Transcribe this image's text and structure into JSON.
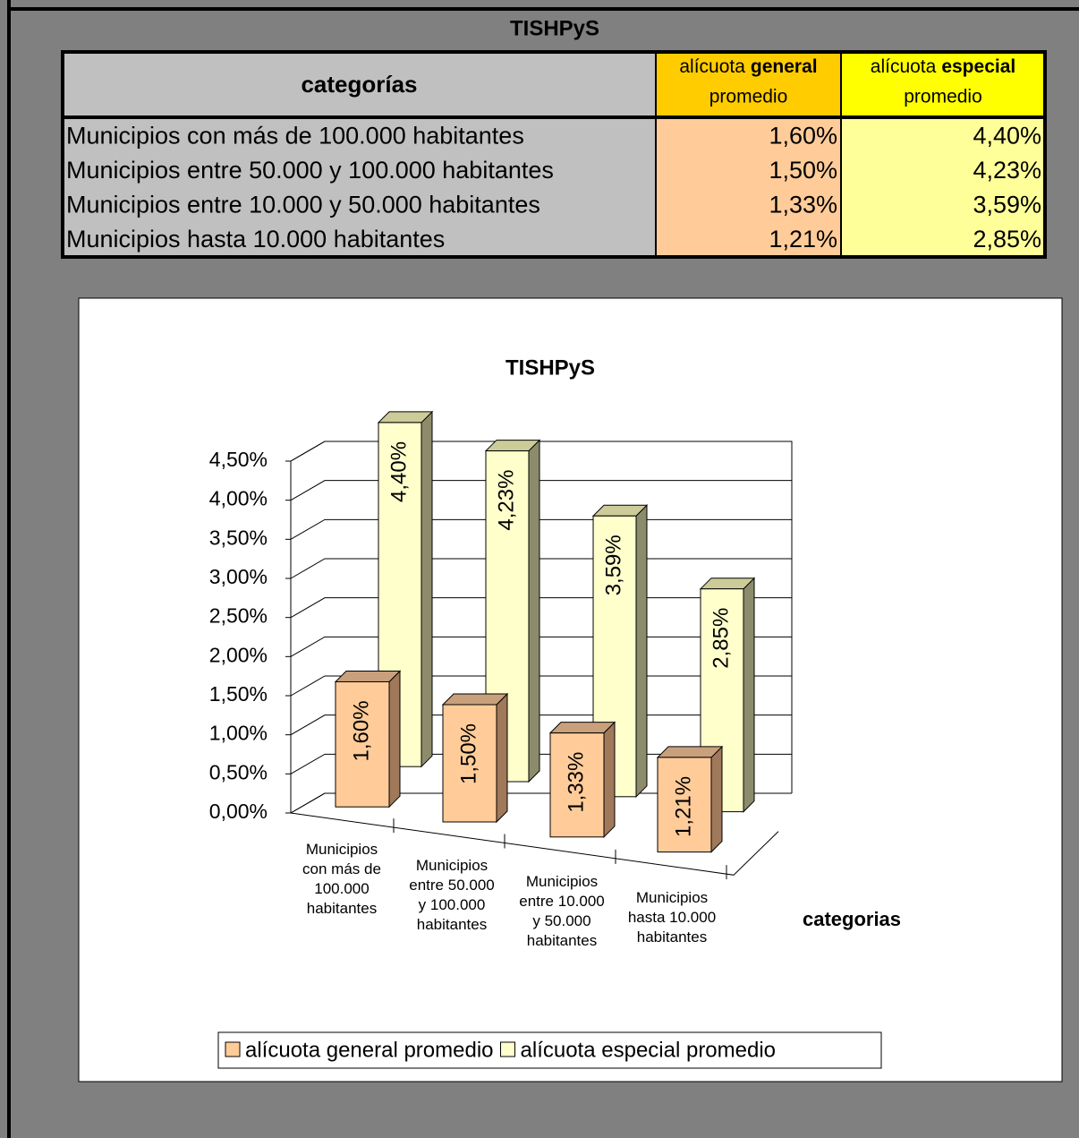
{
  "table": {
    "title": "TISHPyS",
    "header": {
      "category": "categorías",
      "general": [
        "alícuota",
        "general",
        "promedio"
      ],
      "especial": [
        "alícuota",
        "especial",
        "promedio"
      ]
    },
    "rows": [
      [
        "Municipios con más de 100.000 habitantes",
        "1,60%",
        "4,40%"
      ],
      [
        "Municipios entre 50.000 y 100.000 habitantes",
        "1,50%",
        "4,23%"
      ],
      [
        "Municipios entre 10.000 y 50.000 habitantes",
        "1,33%",
        "3,59%"
      ],
      [
        "Municipios hasta 10.000 habitantes",
        "1,21%",
        "2,85%"
      ]
    ]
  },
  "chart_data": {
    "type": "bar3d",
    "title": "TISHPyS",
    "x_label": "categorias",
    "categories": [
      "Municipios con más de 100.000 habitantes",
      "Municipios entre 50.000 y 100.000 habitantes",
      "Municipios entre 10.000 y 50.000 habitantes",
      "Municipios hasta 10.000 habitantes"
    ],
    "series": [
      {
        "name": "alícuota general promedio",
        "color": "#ffcc99",
        "values": [
          1.6,
          1.5,
          1.33,
          1.21
        ],
        "value_labels": [
          "1,60%",
          "1,50%",
          "1,33%",
          "1,21%"
        ]
      },
      {
        "name": "alícuota especial promedio",
        "color": "#ffffcc",
        "values": [
          4.4,
          4.23,
          3.59,
          2.85
        ],
        "value_labels": [
          "4,40%",
          "4,23%",
          "3,59%",
          "2,85%"
        ]
      }
    ],
    "ylim": [
      0,
      4.5
    ],
    "yticks": [
      {
        "value": 0,
        "label": "0,00%"
      },
      {
        "value": 0.5,
        "label": "0,50%"
      },
      {
        "value": 1,
        "label": "1,00%"
      },
      {
        "value": 1.5,
        "label": "1,50%"
      },
      {
        "value": 2,
        "label": "2,00%"
      },
      {
        "value": 2.5,
        "label": "2,50%"
      },
      {
        "value": 3,
        "label": "3,00%"
      },
      {
        "value": 3.5,
        "label": "3,50%"
      },
      {
        "value": 4,
        "label": "4,00%"
      },
      {
        "value": 4.5,
        "label": "4,50%"
      }
    ],
    "grid": true,
    "legend": "bottom"
  }
}
